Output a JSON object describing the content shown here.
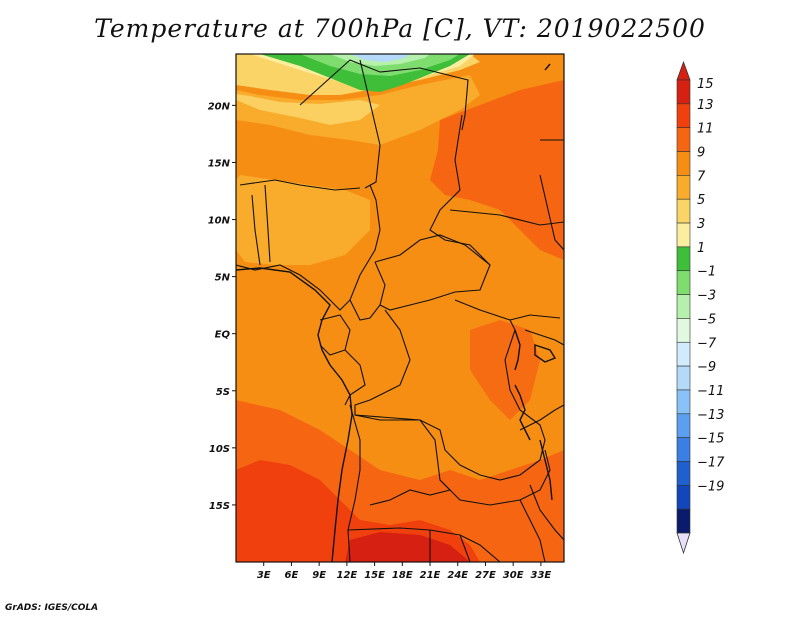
{
  "title": "Temperature at 700hPa [C], VT: 2019022500",
  "credit": "GrADS: IGES/COLA",
  "map": {
    "lat_labels": [
      "20N",
      "15N",
      "10N",
      "5N",
      "EQ",
      "5S",
      "10S",
      "15S"
    ],
    "lon_labels": [
      "3E",
      "6E",
      "9E",
      "12E",
      "15E",
      "18E",
      "21E",
      "24E",
      "27E",
      "30E",
      "33E"
    ],
    "lat_range": [
      -20,
      24.5
    ],
    "lon_range": [
      0,
      35.5
    ]
  },
  "colorbar": {
    "labels": [
      "15",
      "13",
      "11",
      "9",
      "7",
      "5",
      "3",
      "1",
      "−1",
      "−3",
      "−5",
      "−7",
      "−9",
      "−11",
      "−13",
      "−15",
      "−17",
      "−19"
    ],
    "colors": [
      "#d62011",
      "#f0400e",
      "#f66612",
      "#f78e14",
      "#f9ac2b",
      "#fbd467",
      "#fbee9f",
      "#3fbe3a",
      "#7fdc6f",
      "#b5f0ac",
      "#e1fadf",
      "#d1eafc",
      "#b5daf9",
      "#88c2f6",
      "#5a9ff0",
      "#3a7fe3",
      "#1f5fce",
      "#1246ba",
      "#0a1a6d"
    ],
    "top_cap_color": "#d62011",
    "bottom_cap_color": "#e6e0f8"
  }
}
